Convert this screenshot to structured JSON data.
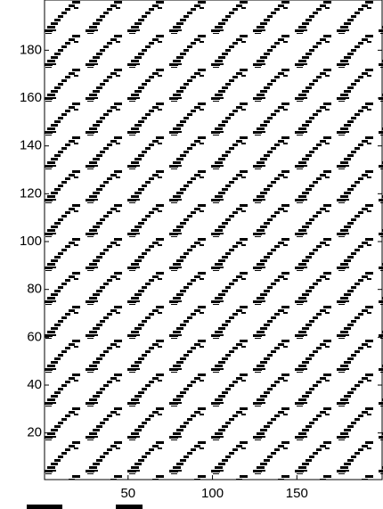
{
  "chart_data": {
    "type": "image",
    "xlim": [
      0.5,
      200.5
    ],
    "ylim": [
      0.5,
      201
    ],
    "xticks": [
      50,
      100,
      150
    ],
    "yticks": [
      20,
      40,
      60,
      80,
      100,
      120,
      140,
      160,
      180
    ]
  }
}
